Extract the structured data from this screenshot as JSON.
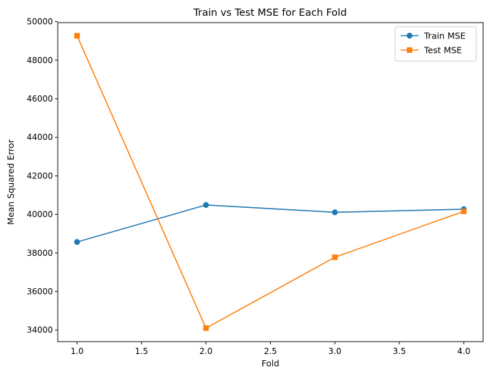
{
  "chart_data": {
    "type": "line",
    "title": "Train vs Test MSE for Each Fold",
    "xlabel": "Fold",
    "ylabel": "Mean Squared Error",
    "xlim": [
      0.85,
      4.15
    ],
    "ylim": [
      33400,
      49950
    ],
    "xticks": [
      1.0,
      1.5,
      2.0,
      2.5,
      3.0,
      3.5,
      4.0
    ],
    "xtick_labels": [
      "1.0",
      "1.5",
      "2.0",
      "2.5",
      "3.0",
      "3.5",
      "4.0"
    ],
    "yticks": [
      34000,
      36000,
      38000,
      40000,
      42000,
      44000,
      46000,
      48000,
      50000
    ],
    "ytick_labels": [
      "34000",
      "36000",
      "38000",
      "40000",
      "42000",
      "44000",
      "46000",
      "48000",
      "50000"
    ],
    "grid": false,
    "legend_position": "top-right",
    "x": [
      1,
      2,
      3,
      4
    ],
    "series": [
      {
        "name": "Train MSE",
        "values": [
          38570,
          40490,
          40110,
          40270
        ],
        "color": "#1f77b4",
        "marker": "circle"
      },
      {
        "name": "Test MSE",
        "values": [
          49270,
          34100,
          37780,
          40160
        ],
        "color": "#ff7f0e",
        "marker": "square"
      }
    ]
  }
}
